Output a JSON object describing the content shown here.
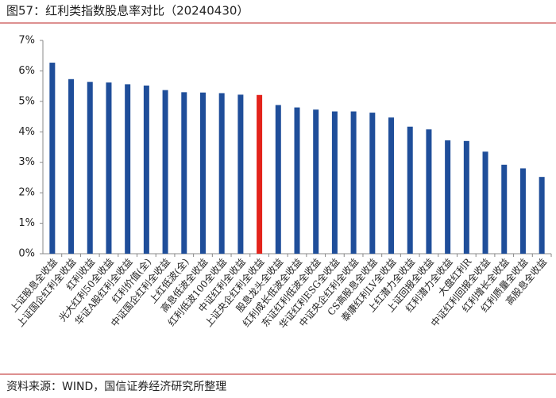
{
  "chart_data": {
    "type": "bar",
    "title": "图57：红利类指数股息率对比（20240430）",
    "source": "资料来源：WIND，国信证券经济研究所整理",
    "categories": [
      "上证股息全收益",
      "上证国企红利全收益",
      "红利收益",
      "光大红利50全收益",
      "华证A股红利全收益",
      "红利价值(全)",
      "中证国企红利全收益",
      "上红低波(全)",
      "高息低波全收益",
      "红利低波100全收益",
      "中证红利全收益",
      "上证央企红利全收益",
      "股息龙头全收益",
      "红利成长低波全收益",
      "东证红利低波全收益",
      "华证红利ESG全收益",
      "中证央企红利全收益",
      "CS高股息全收益",
      "泰康红利LV全收益",
      "上红潜力全收益",
      "上证回报全收益",
      "红利潜力全收益",
      "大盘红利R",
      "中证红利回报全收益",
      "红利增长全收益",
      "红利质量全收益",
      "高股息全收益"
    ],
    "values": [
      6.27,
      5.73,
      5.64,
      5.62,
      5.56,
      5.52,
      5.37,
      5.3,
      5.29,
      5.27,
      5.22,
      5.21,
      4.88,
      4.8,
      4.73,
      4.67,
      4.67,
      4.63,
      4.47,
      4.17,
      4.08,
      3.72,
      3.7,
      3.35,
      2.92,
      2.8,
      2.52
    ],
    "colors": [
      "#1f4e9a",
      "#1f4e9a",
      "#1f4e9a",
      "#1f4e9a",
      "#1f4e9a",
      "#1f4e9a",
      "#1f4e9a",
      "#1f4e9a",
      "#1f4e9a",
      "#1f4e9a",
      "#1f4e9a",
      "#e3231b",
      "#1f4e9a",
      "#1f4e9a",
      "#1f4e9a",
      "#1f4e9a",
      "#1f4e9a",
      "#1f4e9a",
      "#1f4e9a",
      "#1f4e9a",
      "#1f4e9a",
      "#1f4e9a",
      "#1f4e9a",
      "#1f4e9a",
      "#1f4e9a",
      "#1f4e9a",
      "#1f4e9a"
    ],
    "ylim": [
      0,
      7
    ],
    "yticks": [
      {
        "value": 0,
        "label": "0%"
      },
      {
        "value": 1,
        "label": "1%"
      },
      {
        "value": 2,
        "label": "2%"
      },
      {
        "value": 3,
        "label": "3%"
      },
      {
        "value": 4,
        "label": "4%"
      },
      {
        "value": 5,
        "label": "5%"
      },
      {
        "value": 6,
        "label": "6%"
      },
      {
        "value": 7,
        "label": "7%"
      }
    ],
    "grid": false
  }
}
